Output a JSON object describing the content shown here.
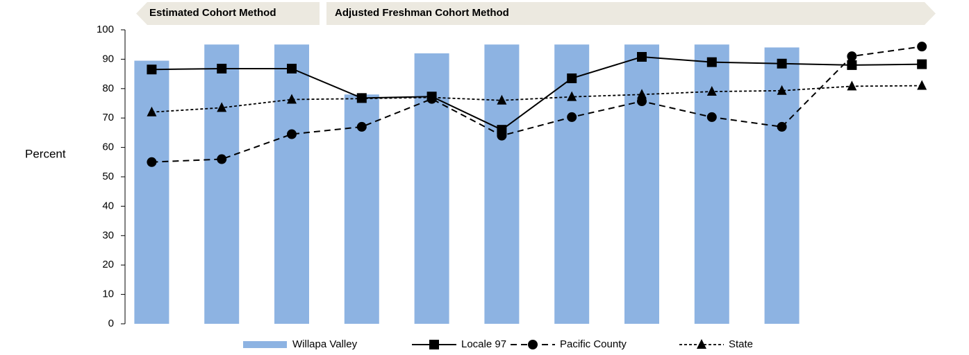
{
  "chart_data": {
    "type": "bar",
    "annotations": [
      "Estimated Cohort Method",
      "Adjusted Freshman Cohort Method"
    ],
    "y_label": "Percent",
    "categories": [
      null,
      null,
      null,
      null,
      null,
      null,
      null,
      null,
      null,
      null,
      null,
      null
    ],
    "series": [
      {
        "name": "Willapa Valley",
        "type": "bar",
        "color": "#8db3e2",
        "values": [
          89.5,
          95,
          95,
          78,
          92,
          95,
          95,
          95,
          95,
          94,
          null,
          null
        ]
      },
      {
        "name": "Locale 97",
        "type": "line",
        "color": "#000000",
        "style": "solid",
        "marker": "square",
        "values": [
          86.5,
          86.8,
          86.8,
          76.8,
          77.3,
          66,
          83.5,
          90.8,
          89,
          88.5,
          88,
          88.3
        ]
      },
      {
        "name": "Pacific County",
        "type": "line",
        "color": "#000000",
        "style": "dashed",
        "marker": "circle",
        "values": [
          55,
          56,
          64.5,
          67,
          76.5,
          64,
          70.3,
          75.7,
          70.3,
          67,
          91,
          94.3
        ]
      },
      {
        "name": "State",
        "type": "line",
        "color": "#000000",
        "style": "dotted",
        "marker": "triangle",
        "values": [
          72,
          73.5,
          76.3,
          76.6,
          77,
          76,
          77.2,
          78,
          79,
          79.3,
          80.8,
          81
        ]
      }
    ],
    "ylim": [
      0,
      100
    ],
    "yticks": [
      0,
      10,
      20,
      30,
      40,
      50,
      60,
      70,
      80,
      90,
      100
    ],
    "legend": "bottom"
  }
}
